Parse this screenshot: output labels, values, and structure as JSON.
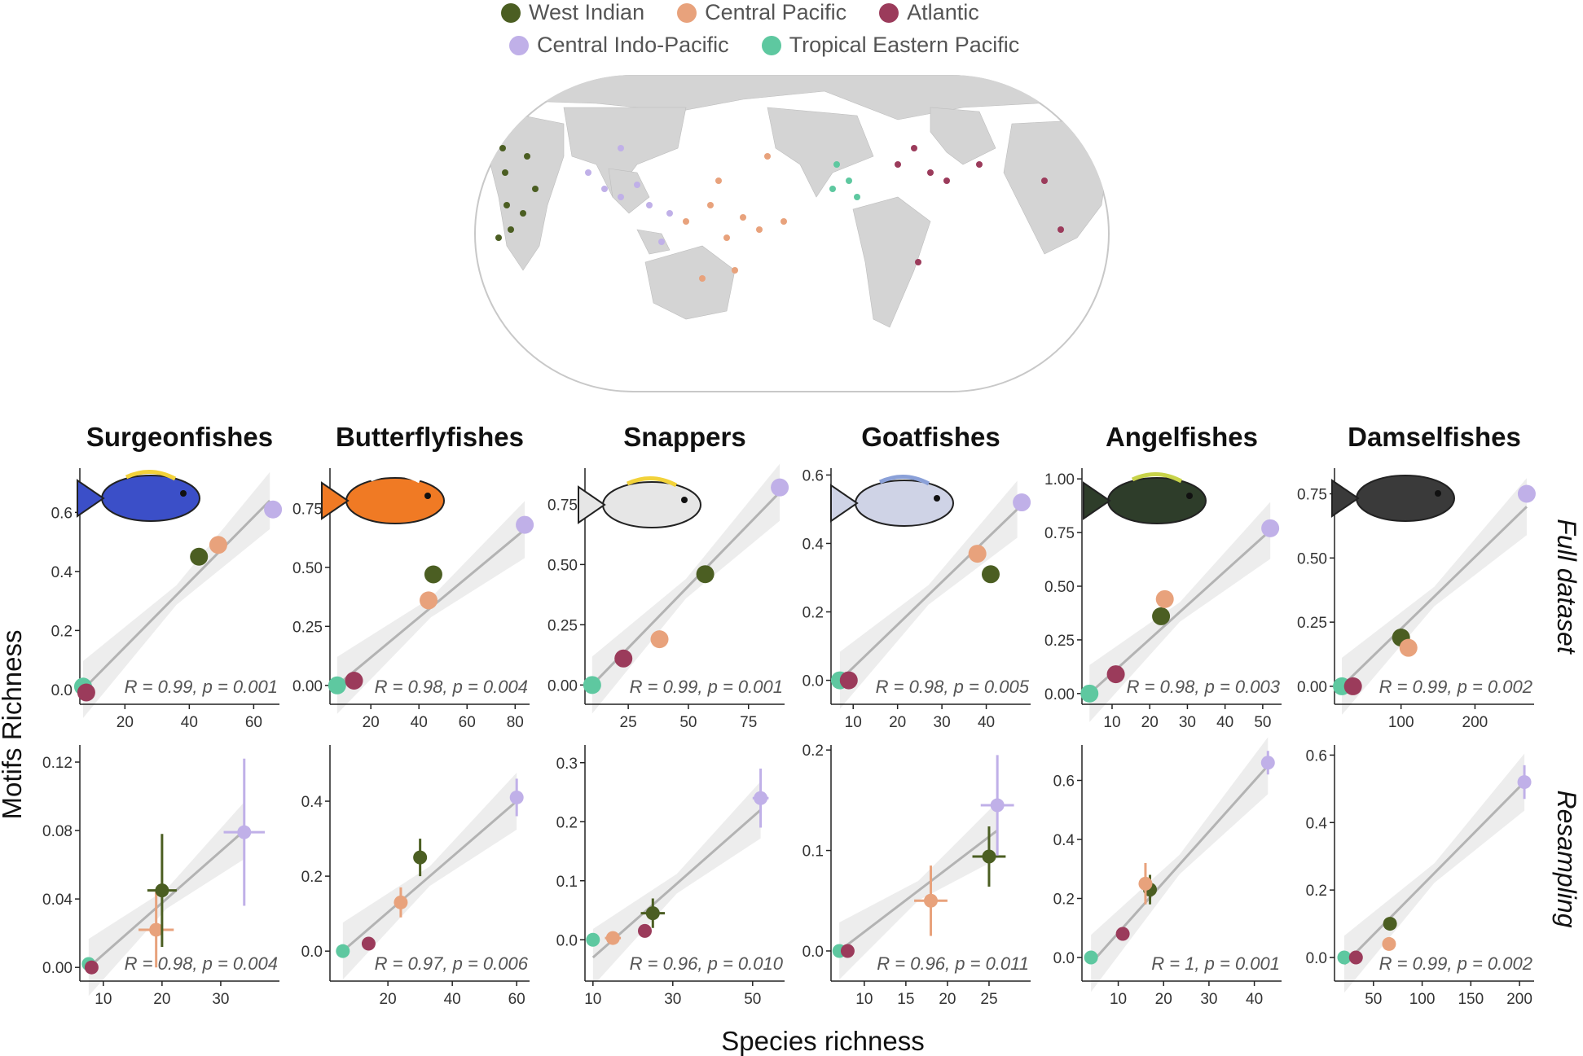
{
  "legend": {
    "row1": [
      {
        "label": "West Indian",
        "color": "#4b5e22"
      },
      {
        "label": "Central Pacific",
        "color": "#e8a27c"
      },
      {
        "label": "Atlantic",
        "color": "#9b3b5b"
      }
    ],
    "row2": [
      {
        "label": "Central Indo-Pacific",
        "color": "#c0b0e8"
      },
      {
        "label": "Tropical Eastern Pacific",
        "color": "#5ec8a0"
      }
    ]
  },
  "axes": {
    "ylabel": "Motifs Richness",
    "xlabel": "Species richness"
  },
  "rows": {
    "full": "Full dataset",
    "resampling": "Resampling"
  },
  "colors": {
    "West Indian": "#4b5e22",
    "Central Pacific": "#e8a27c",
    "Atlantic": "#9b3b5b",
    "Central Indo-Pacific": "#c0b0e8",
    "Tropical Eastern Pacific": "#5ec8a0"
  },
  "chart_data": [
    {
      "type": "scatter",
      "panel": "Surgeonfishes - Full dataset",
      "title": "Surgeonfishes",
      "xlim": [
        6,
        68
      ],
      "ylim": [
        -0.05,
        0.75
      ],
      "xticks": [
        20,
        40,
        60
      ],
      "yticks": [
        0.0,
        0.2,
        0.4,
        0.6
      ],
      "ytick_labels": [
        "0.0",
        "0.2",
        "0.4",
        "0.6"
      ],
      "annotation": "R = 0.99, p = 0.001",
      "fit": [
        [
          7,
          0.0
        ],
        [
          65,
          0.64
        ]
      ],
      "points": [
        {
          "region": "Tropical Eastern Pacific",
          "x": 7,
          "y": 0.01
        },
        {
          "region": "Atlantic",
          "x": 8,
          "y": -0.01
        },
        {
          "region": "West Indian",
          "x": 43,
          "y": 0.45
        },
        {
          "region": "Central Pacific",
          "x": 49,
          "y": 0.49
        },
        {
          "region": "Central Indo-Pacific",
          "x": 66,
          "y": 0.61
        }
      ]
    },
    {
      "type": "scatter",
      "panel": "Butterflyfishes - Full dataset",
      "title": "Butterflyfishes",
      "xlim": [
        3,
        86
      ],
      "ylim": [
        -0.08,
        0.92
      ],
      "xticks": [
        20,
        40,
        60,
        80
      ],
      "yticks": [
        0.0,
        0.25,
        0.5,
        0.75
      ],
      "ytick_labels": [
        "0.00",
        "0.25",
        "0.50",
        "0.75"
      ],
      "annotation": "R = 0.98, p = 0.004",
      "fit": [
        [
          6,
          0.0
        ],
        [
          84,
          0.66
        ]
      ],
      "points": [
        {
          "region": "Tropical Eastern Pacific",
          "x": 6,
          "y": 0.0
        },
        {
          "region": "Atlantic",
          "x": 13,
          "y": 0.02
        },
        {
          "region": "Central Pacific",
          "x": 44,
          "y": 0.36
        },
        {
          "region": "West Indian",
          "x": 46,
          "y": 0.47
        },
        {
          "region": "Central Indo-Pacific",
          "x": 84,
          "y": 0.68
        }
      ]
    },
    {
      "type": "scatter",
      "panel": "Snappers - Full dataset",
      "title": "Snappers",
      "xlim": [
        7,
        90
      ],
      "ylim": [
        -0.08,
        0.9
      ],
      "xticks": [
        25,
        50,
        75
      ],
      "yticks": [
        0.0,
        0.25,
        0.5,
        0.75
      ],
      "ytick_labels": [
        "0.00",
        "0.25",
        "0.50",
        "0.75"
      ],
      "annotation": "R = 0.99, p = 0.001",
      "fit": [
        [
          10,
          0.0
        ],
        [
          88,
          0.8
        ]
      ],
      "points": [
        {
          "region": "Tropical Eastern Pacific",
          "x": 10,
          "y": 0.0
        },
        {
          "region": "Atlantic",
          "x": 23,
          "y": 0.11
        },
        {
          "region": "Central Pacific",
          "x": 38,
          "y": 0.19
        },
        {
          "region": "West Indian",
          "x": 57,
          "y": 0.46
        },
        {
          "region": "Central Indo-Pacific",
          "x": 88,
          "y": 0.82
        }
      ]
    },
    {
      "type": "scatter",
      "panel": "Goatfishes - Full dataset",
      "title": "Goatfishes",
      "xlim": [
        5,
        50
      ],
      "ylim": [
        -0.07,
        0.62
      ],
      "xticks": [
        10,
        20,
        30,
        40
      ],
      "yticks": [
        0.0,
        0.2,
        0.4,
        0.6
      ],
      "ytick_labels": [
        "0.0",
        "0.2",
        "0.4",
        "0.6"
      ],
      "annotation": "R = 0.98, p = 0.005",
      "fit": [
        [
          7,
          0.0
        ],
        [
          47,
          0.5
        ]
      ],
      "points": [
        {
          "region": "Tropical Eastern Pacific",
          "x": 7,
          "y": 0.0
        },
        {
          "region": "Atlantic",
          "x": 9,
          "y": 0.0
        },
        {
          "region": "Central Pacific",
          "x": 38,
          "y": 0.37
        },
        {
          "region": "West Indian",
          "x": 41,
          "y": 0.31
        },
        {
          "region": "Central Indo-Pacific",
          "x": 48,
          "y": 0.52
        }
      ]
    },
    {
      "type": "scatter",
      "panel": "Angelfishes - Full dataset",
      "title": "Angelfishes",
      "xlim": [
        2,
        55
      ],
      "ylim": [
        -0.05,
        1.05
      ],
      "xticks": [
        10,
        20,
        30,
        40,
        50
      ],
      "yticks": [
        0.0,
        0.25,
        0.5,
        0.75,
        1.0
      ],
      "ytick_labels": [
        "0.00",
        "0.25",
        "0.50",
        "0.75",
        "1.00"
      ],
      "annotation": "R = 0.98, p = 0.003",
      "fit": [
        [
          4,
          0.0
        ],
        [
          52,
          0.76
        ]
      ],
      "points": [
        {
          "region": "Tropical Eastern Pacific",
          "x": 4,
          "y": 0.0
        },
        {
          "region": "Atlantic",
          "x": 11,
          "y": 0.09
        },
        {
          "region": "West Indian",
          "x": 23,
          "y": 0.36
        },
        {
          "region": "Central Pacific",
          "x": 24,
          "y": 0.44
        },
        {
          "region": "Central Indo-Pacific",
          "x": 52,
          "y": 0.77
        }
      ]
    },
    {
      "type": "scatter",
      "panel": "Damselfishes - Full dataset",
      "title": "Damselfishes",
      "xlim": [
        10,
        280
      ],
      "ylim": [
        -0.07,
        0.85
      ],
      "xticks": [
        100,
        200
      ],
      "yticks": [
        0.0,
        0.25,
        0.5,
        0.75
      ],
      "ytick_labels": [
        "0.00",
        "0.25",
        "0.50",
        "0.75"
      ],
      "annotation": "R = 0.99, p = 0.002",
      "fit": [
        [
          20,
          0.0
        ],
        [
          270,
          0.7
        ]
      ],
      "points": [
        {
          "region": "Tropical Eastern Pacific",
          "x": 20,
          "y": 0.0
        },
        {
          "region": "Atlantic",
          "x": 35,
          "y": 0.0
        },
        {
          "region": "West Indian",
          "x": 100,
          "y": 0.19
        },
        {
          "region": "Central Pacific",
          "x": 110,
          "y": 0.15
        },
        {
          "region": "Central Indo-Pacific",
          "x": 270,
          "y": 0.75
        }
      ]
    },
    {
      "type": "scatter",
      "panel": "Surgeonfishes - Resampling",
      "xlim": [
        6,
        40
      ],
      "ylim": [
        -0.008,
        0.13
      ],
      "xticks": [
        10,
        20,
        30
      ],
      "yticks": [
        0.0,
        0.04,
        0.08,
        0.12
      ],
      "ytick_labels": [
        "0.00",
        "0.04",
        "0.08",
        "0.12"
      ],
      "annotation": "R = 0.98, p = 0.004",
      "fit": [
        [
          7.5,
          0.0
        ],
        [
          34,
          0.08
        ]
      ],
      "points": [
        {
          "region": "Tropical Eastern Pacific",
          "x": 7.5,
          "y": 0.002
        },
        {
          "region": "Atlantic",
          "x": 8,
          "y": 0.0
        },
        {
          "region": "Central Pacific",
          "x": 19,
          "y": 0.022,
          "xerr": 3,
          "yerr": 0.022
        },
        {
          "region": "West Indian",
          "x": 20,
          "y": 0.045,
          "xerr": 2.5,
          "yerr": 0.033
        },
        {
          "region": "Central Indo-Pacific",
          "x": 34,
          "y": 0.079,
          "xerr": 3.5,
          "yerr": 0.043
        }
      ]
    },
    {
      "type": "scatter",
      "panel": "Butterflyfishes - Resampling",
      "xlim": [
        2,
        64
      ],
      "ylim": [
        -0.08,
        0.55
      ],
      "xticks": [
        20,
        40,
        60
      ],
      "yticks": [
        0.0,
        0.2,
        0.4
      ],
      "ytick_labels": [
        "0.0",
        "0.2",
        "0.4"
      ],
      "annotation": "R = 0.97, p = 0.006",
      "fit": [
        [
          6,
          0.0
        ],
        [
          60,
          0.4
        ]
      ],
      "points": [
        {
          "region": "Tropical Eastern Pacific",
          "x": 6,
          "y": 0.0
        },
        {
          "region": "Atlantic",
          "x": 14,
          "y": 0.02
        },
        {
          "region": "Central Pacific",
          "x": 24,
          "y": 0.13,
          "xerr": 2,
          "yerr": 0.04
        },
        {
          "region": "West Indian",
          "x": 30,
          "y": 0.25,
          "xerr": 1,
          "yerr": 0.05
        },
        {
          "region": "Central Indo-Pacific",
          "x": 60,
          "y": 0.41,
          "xerr": 1,
          "yerr": 0.05
        }
      ]
    },
    {
      "type": "scatter",
      "panel": "Snappers - Resampling",
      "xlim": [
        8,
        58
      ],
      "ylim": [
        -0.07,
        0.33
      ],
      "xticks": [
        10,
        30,
        50
      ],
      "yticks": [
        0.0,
        0.1,
        0.2,
        0.3
      ],
      "ytick_labels": [
        "0.0",
        "0.1",
        "0.2",
        "0.3"
      ],
      "annotation": "R = 0.96, p = 0.010",
      "fit": [
        [
          10,
          -0.03
        ],
        [
          52,
          0.22
        ]
      ],
      "points": [
        {
          "region": "Tropical Eastern Pacific",
          "x": 10,
          "y": 0.0
        },
        {
          "region": "Central Pacific",
          "x": 15,
          "y": 0.003,
          "xerr": 2,
          "yerr": 0.005
        },
        {
          "region": "Atlantic",
          "x": 23,
          "y": 0.015
        },
        {
          "region": "West Indian",
          "x": 25,
          "y": 0.045,
          "xerr": 3,
          "yerr": 0.025
        },
        {
          "region": "Central Indo-Pacific",
          "x": 52,
          "y": 0.24,
          "xerr": 2,
          "yerr": 0.05
        }
      ]
    },
    {
      "type": "scatter",
      "panel": "Goatfishes - Resampling",
      "xlim": [
        6,
        30
      ],
      "ylim": [
        -0.03,
        0.205
      ],
      "xticks": [
        10,
        15,
        20,
        25
      ],
      "yticks": [
        0.0,
        0.1,
        0.2
      ],
      "ytick_labels": [
        "0.0",
        "0.1",
        "0.2"
      ],
      "annotation": "R = 0.96, p = 0.011",
      "fit": [
        [
          7,
          0.0
        ],
        [
          26,
          0.12
        ]
      ],
      "points": [
        {
          "region": "Tropical Eastern Pacific",
          "x": 7,
          "y": 0.0
        },
        {
          "region": "Atlantic",
          "x": 8,
          "y": 0.0
        },
        {
          "region": "Central Pacific",
          "x": 18,
          "y": 0.05,
          "xerr": 2,
          "yerr": 0.035
        },
        {
          "region": "West Indian",
          "x": 25,
          "y": 0.094,
          "xerr": 2,
          "yerr": 0.03
        },
        {
          "region": "Central Indo-Pacific",
          "x": 26,
          "y": 0.145,
          "xerr": 2,
          "yerr": 0.05
        }
      ]
    },
    {
      "type": "scatter",
      "panel": "Angelfishes - Resampling",
      "xlim": [
        2,
        46
      ],
      "ylim": [
        -0.08,
        0.72
      ],
      "xticks": [
        10,
        20,
        30,
        40
      ],
      "yticks": [
        0.0,
        0.2,
        0.4,
        0.6
      ],
      "ytick_labels": [
        "0.0",
        "0.2",
        "0.4",
        "0.6"
      ],
      "annotation": "R = 1, p = 0.001",
      "fit": [
        [
          4,
          -0.02
        ],
        [
          43,
          0.65
        ]
      ],
      "points": [
        {
          "region": "Tropical Eastern Pacific",
          "x": 4,
          "y": 0.0
        },
        {
          "region": "Atlantic",
          "x": 11,
          "y": 0.08
        },
        {
          "region": "West Indian",
          "x": 17,
          "y": 0.23,
          "xerr": 1,
          "yerr": 0.05
        },
        {
          "region": "Central Pacific",
          "x": 16,
          "y": 0.25,
          "xerr": 1,
          "yerr": 0.07
        },
        {
          "region": "Central Indo-Pacific",
          "x": 43,
          "y": 0.66,
          "xerr": 1,
          "yerr": 0.04
        }
      ]
    },
    {
      "type": "scatter",
      "panel": "Damselfishes - Resampling",
      "xlim": [
        10,
        215
      ],
      "ylim": [
        -0.07,
        0.63
      ],
      "xticks": [
        50,
        100,
        150,
        200
      ],
      "yticks": [
        0.0,
        0.2,
        0.4,
        0.6
      ],
      "ytick_labels": [
        "0.0",
        "0.2",
        "0.4",
        "0.6"
      ],
      "annotation": "R = 0.99, p = 0.002",
      "fit": [
        [
          20,
          -0.02
        ],
        [
          205,
          0.52
        ]
      ],
      "points": [
        {
          "region": "Tropical Eastern Pacific",
          "x": 20,
          "y": 0.0
        },
        {
          "region": "Atlantic",
          "x": 32,
          "y": 0.0
        },
        {
          "region": "Central Pacific",
          "x": 66,
          "y": 0.04
        },
        {
          "region": "West Indian",
          "x": 67,
          "y": 0.1
        },
        {
          "region": "Central Indo-Pacific",
          "x": 205,
          "y": 0.52,
          "yerr": 0.05
        }
      ]
    }
  ]
}
